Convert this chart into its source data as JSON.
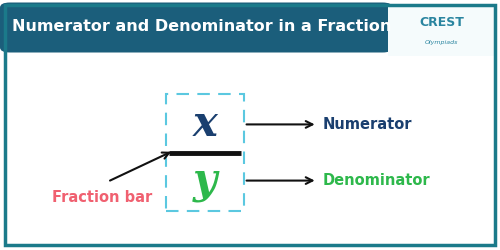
{
  "title": "Numerator and Denominator in a Fraction",
  "title_bg": "#1b5e7b",
  "title_color": "#ffffff",
  "outer_border_color": "#1b7a8a",
  "bg_color": "#ffffff",
  "x_label": "x",
  "y_label": "y",
  "x_color": "#1a3f6f",
  "y_color": "#2db84b",
  "fraction_bar_color": "#111111",
  "box_color": "#5bc8e0",
  "numerator_label": "Numerator",
  "denominator_label": "Denominator",
  "fraction_bar_label": "Fraction bar",
  "label_color": "#1a3f6f",
  "fraction_bar_text_color": "#f06070",
  "denominator_label_color": "#2db84b",
  "crest_color": "#2a85a0",
  "arrow_color": "#111111"
}
